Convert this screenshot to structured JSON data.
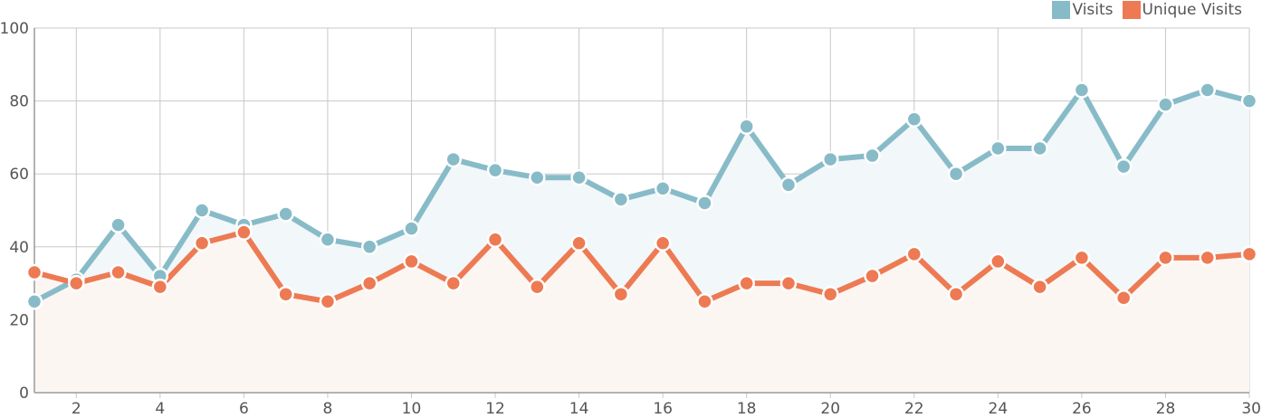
{
  "chart_data": {
    "type": "line",
    "title": "",
    "xlabel": "",
    "ylabel": "",
    "x": [
      1,
      2,
      3,
      4,
      5,
      6,
      7,
      8,
      9,
      10,
      11,
      12,
      13,
      14,
      15,
      16,
      17,
      18,
      19,
      20,
      21,
      22,
      23,
      24,
      25,
      26,
      27,
      28,
      29,
      30
    ],
    "x_ticks": [
      2,
      4,
      6,
      8,
      10,
      12,
      14,
      16,
      18,
      20,
      22,
      24,
      26,
      28,
      30
    ],
    "xlim": [
      1,
      30
    ],
    "ylim": [
      0,
      100
    ],
    "y_ticks": [
      0,
      20,
      40,
      60,
      80,
      100
    ],
    "grid": true,
    "legend_position": "top-right",
    "area_fill": true,
    "series": [
      {
        "name": "Visits",
        "color": "#88BBC8",
        "fill_color": "#F2F7FA",
        "values": [
          25,
          31,
          46,
          32,
          50,
          46,
          49,
          42,
          40,
          45,
          64,
          61,
          59,
          59,
          53,
          56,
          52,
          73,
          57,
          64,
          65,
          75,
          60,
          67,
          67,
          83,
          62,
          79,
          83,
          80
        ]
      },
      {
        "name": "Unique Visits",
        "color": "#ED7A53",
        "fill_color": "#FCF6F2",
        "values": [
          33,
          30,
          33,
          29,
          41,
          44,
          27,
          25,
          30,
          36,
          30,
          42,
          29,
          41,
          27,
          41,
          25,
          30,
          30,
          27,
          32,
          38,
          27,
          36,
          29,
          37,
          26,
          37,
          37,
          38
        ]
      }
    ]
  }
}
